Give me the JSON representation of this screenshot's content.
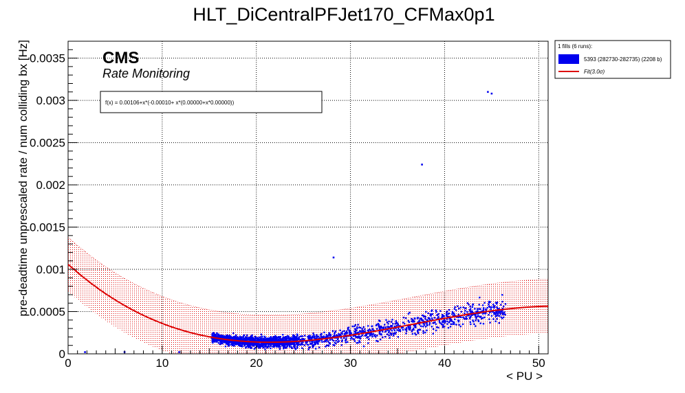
{
  "chart_data": {
    "type": "scatter",
    "title": "HLT_DiCentralPFJet170_CFMax0p1",
    "xlabel": "< PU >",
    "ylabel": "pre-deadtime unprescaled rate / num colliding bx [Hz]",
    "xlim": [
      0,
      51
    ],
    "ylim": [
      0,
      0.0037
    ],
    "x_ticks": [
      0,
      10,
      20,
      30,
      40,
      50
    ],
    "x_tick_labels": [
      "0",
      "10",
      "20",
      "30",
      "40",
      "50"
    ],
    "y_ticks": [
      0,
      0.0005,
      0.001,
      0.0015,
      0.002,
      0.0025,
      0.003,
      0.0035
    ],
    "y_tick_labels": [
      "0",
      "0.0005",
      "0.001",
      "0.0015",
      "0.002",
      "0.0025",
      "0.003",
      "0.0035"
    ],
    "grid": true,
    "cms_label": "CMS",
    "subtitle": "Rate Monitoring",
    "formula": "f(x) = 0.00106+x*(-0.00010+ x*(0.00000+x*0.00000))",
    "fit": {
      "coeffs": [
        0.00106,
        -0.0001,
        3.3e-06,
        -3e-08
      ],
      "band_sigma": 0.00032,
      "x_range": [
        0,
        51
      ]
    },
    "series": [
      {
        "name": "5393 (282730-282735) (2208 b)",
        "color": "#0000ee",
        "n_points": 2200,
        "x_range": [
          15.3,
          46.5
        ],
        "point_scatter": 0.00012,
        "outliers": [
          {
            "x": 1.8,
            "y": 2e-05
          },
          {
            "x": 6.0,
            "y": 2e-05
          },
          {
            "x": 11.8,
            "y": 2e-05
          },
          {
            "x": 28.2,
            "y": 0.00114
          },
          {
            "x": 37.6,
            "y": 0.00224
          },
          {
            "x": 45.0,
            "y": 0.00308
          },
          {
            "x": 44.6,
            "y": 0.0031
          }
        ]
      }
    ],
    "legend": {
      "position": "top-right",
      "header": "1 fills (6 runs):",
      "entries": [
        {
          "label": "5393 (282730-282735) (2208 b)",
          "color": "#0000ee",
          "kind": "box"
        },
        {
          "label": "Fit(3.0σ)",
          "color": "#dd0000",
          "kind": "line"
        }
      ]
    },
    "colors": {
      "fit": "#dd0000",
      "band": "#dd0000",
      "points": "#0000ee"
    }
  }
}
